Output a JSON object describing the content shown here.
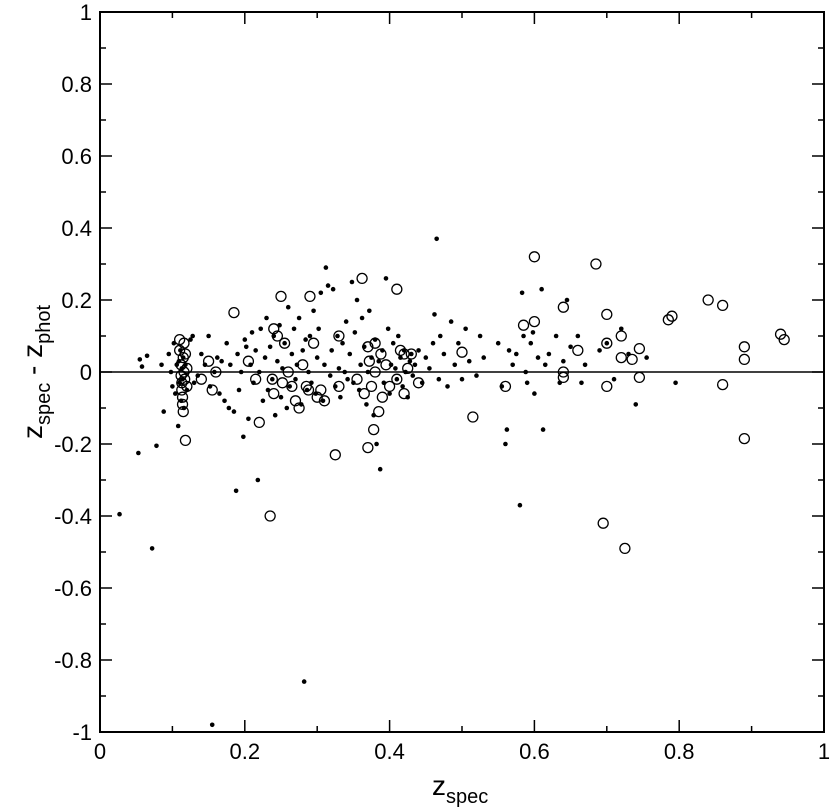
{
  "chart_data": {
    "type": "scatter",
    "title": "",
    "xlabel": {
      "main": "z",
      "sub": "spec"
    },
    "ylabel": {
      "main1": "z",
      "sub1": "spec",
      "sep": " - ",
      "main2": "z",
      "sub2": "phot"
    },
    "xlim": [
      0,
      1
    ],
    "ylim": [
      -1,
      1
    ],
    "x_ticks": [
      0,
      0.2,
      0.4,
      0.6,
      0.8,
      1
    ],
    "x_tick_labels": [
      "0",
      "0.2",
      "0.4",
      "0.6",
      "0.8",
      "1"
    ],
    "y_ticks": [
      -1,
      -0.8,
      -0.6,
      -0.4,
      -0.2,
      0,
      0.2,
      0.4,
      0.6,
      0.8,
      1
    ],
    "y_tick_labels": [
      "-1",
      "-0.8",
      "-0.6",
      "-0.4",
      "-0.2",
      "0",
      "0.2",
      "0.4",
      "0.6",
      "0.8",
      "1"
    ],
    "reference_line_y": 0,
    "grid": false,
    "legend": "none",
    "colors": {
      "points": "#000000",
      "axes": "#000000",
      "background": "#ffffff"
    },
    "series": [
      {
        "marker": "filled-dot",
        "points": [
          [
            0.027,
            -0.395
          ],
          [
            0.053,
            -0.225
          ],
          [
            0.055,
            0.035
          ],
          [
            0.058,
            0.015
          ],
          [
            0.065,
            0.045
          ],
          [
            0.072,
            -0.49
          ],
          [
            0.078,
            -0.205
          ],
          [
            0.085,
            0.02
          ],
          [
            0.088,
            -0.11
          ],
          [
            0.095,
            0.05
          ],
          [
            0.098,
            0.0
          ],
          [
            0.1,
            -0.04
          ],
          [
            0.102,
            0.08
          ],
          [
            0.104,
            -0.06
          ],
          [
            0.106,
            0.02
          ],
          [
            0.108,
            -0.15
          ],
          [
            0.109,
            0.03
          ],
          [
            0.11,
            -0.03
          ],
          [
            0.111,
            0.06
          ],
          [
            0.112,
            -0.08
          ],
          [
            0.113,
            0.01
          ],
          [
            0.114,
            -0.02
          ],
          [
            0.115,
            0.04
          ],
          [
            0.116,
            -0.1
          ],
          [
            0.118,
            0.02
          ],
          [
            0.12,
            -0.05
          ],
          [
            0.125,
            0.09
          ],
          [
            0.128,
            0.1
          ],
          [
            0.13,
            -0.03
          ],
          [
            0.135,
            -0.01
          ],
          [
            0.14,
            0.05
          ],
          [
            0.145,
            0.02
          ],
          [
            0.15,
            0.1
          ],
          [
            0.152,
            -0.04
          ],
          [
            0.155,
            -0.98
          ],
          [
            0.158,
            0.0
          ],
          [
            0.162,
            0.04
          ],
          [
            0.165,
            -0.06
          ],
          [
            0.168,
            0.03
          ],
          [
            0.172,
            -0.08
          ],
          [
            0.175,
            0.08
          ],
          [
            0.178,
            -0.1
          ],
          [
            0.18,
            0.02
          ],
          [
            0.185,
            -0.11
          ],
          [
            0.188,
            -0.33
          ],
          [
            0.19,
            0.05
          ],
          [
            0.192,
            -0.05
          ],
          [
            0.195,
            0.0
          ],
          [
            0.198,
            -0.18
          ],
          [
            0.2,
            0.09
          ],
          [
            0.202,
            0.07
          ],
          [
            0.205,
            -0.13
          ],
          [
            0.208,
            0.02
          ],
          [
            0.21,
            0.11
          ],
          [
            0.212,
            -0.03
          ],
          [
            0.215,
            0.06
          ],
          [
            0.218,
            -0.3
          ],
          [
            0.22,
            0.0
          ],
          [
            0.222,
            0.12
          ],
          [
            0.225,
            -0.08
          ],
          [
            0.228,
            0.04
          ],
          [
            0.23,
            0.15
          ],
          [
            0.232,
            -0.05
          ],
          [
            0.235,
            0.07
          ],
          [
            0.238,
            -0.02
          ],
          [
            0.24,
            0.1
          ],
          [
            0.242,
            -0.12
          ],
          [
            0.245,
            0.03
          ],
          [
            0.248,
            0.13
          ],
          [
            0.25,
            -0.07
          ],
          [
            0.252,
            0.01
          ],
          [
            0.255,
            0.08
          ],
          [
            0.258,
            -0.1
          ],
          [
            0.26,
            0.18
          ],
          [
            0.262,
            -0.04
          ],
          [
            0.265,
            0.05
          ],
          [
            0.268,
            0.12
          ],
          [
            0.27,
            -0.02
          ],
          [
            0.272,
            0.02
          ],
          [
            0.275,
            0.15
          ],
          [
            0.278,
            -0.09
          ],
          [
            0.28,
            0.06
          ],
          [
            0.282,
            -0.86
          ],
          [
            0.284,
            0.09
          ],
          [
            0.286,
            -0.05
          ],
          [
            0.288,
            0.0
          ],
          [
            0.29,
            0.1
          ],
          [
            0.292,
            -0.03
          ],
          [
            0.295,
            0.17
          ],
          [
            0.298,
            -0.06
          ],
          [
            0.3,
            0.04
          ],
          [
            0.302,
            0.12
          ],
          [
            0.305,
            0.22
          ],
          [
            0.308,
            -0.08
          ],
          [
            0.31,
            0.02
          ],
          [
            0.312,
            0.29
          ],
          [
            0.315,
            0.24
          ],
          [
            0.318,
            -0.01
          ],
          [
            0.32,
            0.06
          ],
          [
            0.322,
            0.23
          ],
          [
            0.325,
            -0.04
          ],
          [
            0.328,
            0.1
          ],
          [
            0.33,
            0.01
          ],
          [
            0.332,
            -0.07
          ],
          [
            0.335,
            0.08
          ],
          [
            0.338,
            0.0
          ],
          [
            0.34,
            0.14
          ],
          [
            0.342,
            -0.02
          ],
          [
            0.345,
            0.05
          ],
          [
            0.348,
            0.25
          ],
          [
            0.35,
            -0.03
          ],
          [
            0.352,
            0.11
          ],
          [
            0.355,
            0.2
          ],
          [
            0.358,
            -0.05
          ],
          [
            0.36,
            0.02
          ],
          [
            0.362,
            0.15
          ],
          [
            0.365,
            0.07
          ],
          [
            0.368,
            -0.09
          ],
          [
            0.37,
            0.0
          ],
          [
            0.372,
            0.17
          ],
          [
            0.375,
            0.04
          ],
          [
            0.378,
            -0.12
          ],
          [
            0.38,
            0.09
          ],
          [
            0.382,
            -0.2
          ],
          [
            0.385,
            0.03
          ],
          [
            0.387,
            -0.27
          ],
          [
            0.39,
            0.06
          ],
          [
            0.392,
            -0.03
          ],
          [
            0.395,
            0.26
          ],
          [
            0.398,
            0.12
          ],
          [
            0.4,
            -0.06
          ],
          [
            0.402,
            0.02
          ],
          [
            0.405,
            0.08
          ],
          [
            0.408,
            0.01
          ],
          [
            0.41,
            -0.02
          ],
          [
            0.412,
            0.1
          ],
          [
            0.415,
            0.04
          ],
          [
            0.418,
            -0.04
          ],
          [
            0.42,
            0.06
          ],
          [
            0.422,
            0.0
          ],
          [
            0.425,
            -0.07
          ],
          [
            0.428,
            0.03
          ],
          [
            0.43,
            0.05
          ],
          [
            0.432,
            -0.01
          ],
          [
            0.435,
            0.02
          ],
          [
            0.44,
            0.06
          ],
          [
            0.445,
            -0.03
          ],
          [
            0.45,
            0.04
          ],
          [
            0.455,
            0.01
          ],
          [
            0.46,
            0.08
          ],
          [
            0.462,
            0.16
          ],
          [
            0.465,
            0.37
          ],
          [
            0.468,
            -0.02
          ],
          [
            0.47,
            0.1
          ],
          [
            0.475,
            0.05
          ],
          [
            0.48,
            -0.04
          ],
          [
            0.485,
            0.14
          ],
          [
            0.49,
            0.02
          ],
          [
            0.495,
            0.08
          ],
          [
            0.5,
            -0.02
          ],
          [
            0.505,
            0.12
          ],
          [
            0.51,
            0.03
          ],
          [
            0.52,
            -0.01
          ],
          [
            0.525,
            0.1
          ],
          [
            0.53,
            0.04
          ],
          [
            0.55,
            0.08
          ],
          [
            0.555,
            -0.04
          ],
          [
            0.56,
            -0.2
          ],
          [
            0.562,
            -0.16
          ],
          [
            0.565,
            0.06
          ],
          [
            0.57,
            0.02
          ],
          [
            0.575,
            0.05
          ],
          [
            0.58,
            -0.37
          ],
          [
            0.583,
            0.22
          ],
          [
            0.585,
            0.1
          ],
          [
            0.588,
            0.0
          ],
          [
            0.59,
            -0.03
          ],
          [
            0.595,
            0.08
          ],
          [
            0.598,
            0.11
          ],
          [
            0.6,
            -0.06
          ],
          [
            0.605,
            0.04
          ],
          [
            0.61,
            0.23
          ],
          [
            0.612,
            -0.16
          ],
          [
            0.615,
            0.02
          ],
          [
            0.62,
            0.05
          ],
          [
            0.63,
            0.1
          ],
          [
            0.635,
            -0.03
          ],
          [
            0.64,
            0.03
          ],
          [
            0.645,
            0.2
          ],
          [
            0.65,
            0.07
          ],
          [
            0.66,
            0.1
          ],
          [
            0.665,
            -0.03
          ],
          [
            0.67,
            0.02
          ],
          [
            0.69,
            0.06
          ],
          [
            0.7,
            0.08
          ],
          [
            0.71,
            -0.02
          ],
          [
            0.72,
            0.12
          ],
          [
            0.73,
            0.05
          ],
          [
            0.74,
            -0.09
          ],
          [
            0.755,
            0.04
          ],
          [
            0.795,
            -0.03
          ]
        ]
      },
      {
        "marker": "open-circle",
        "points": [
          [
            0.11,
            0.09
          ],
          [
            0.11,
            0.06
          ],
          [
            0.112,
            0.02
          ],
          [
            0.112,
            -0.01
          ],
          [
            0.113,
            -0.03
          ],
          [
            0.113,
            -0.05
          ],
          [
            0.114,
            -0.07
          ],
          [
            0.114,
            -0.09
          ],
          [
            0.115,
            0.04
          ],
          [
            0.115,
            -0.11
          ],
          [
            0.116,
            0.0
          ],
          [
            0.116,
            0.08
          ],
          [
            0.117,
            -0.02
          ],
          [
            0.118,
            0.05
          ],
          [
            0.118,
            -0.19
          ],
          [
            0.12,
            0.01
          ],
          [
            0.12,
            -0.04
          ],
          [
            0.14,
            -0.02
          ],
          [
            0.15,
            0.03
          ],
          [
            0.155,
            -0.05
          ],
          [
            0.16,
            0.0
          ],
          [
            0.185,
            0.165
          ],
          [
            0.205,
            0.03
          ],
          [
            0.215,
            -0.02
          ],
          [
            0.22,
            -0.14
          ],
          [
            0.24,
            0.12
          ],
          [
            0.235,
            -0.4
          ],
          [
            0.238,
            -0.02
          ],
          [
            0.24,
            -0.06
          ],
          [
            0.245,
            0.1
          ],
          [
            0.25,
            0.21
          ],
          [
            0.252,
            -0.03
          ],
          [
            0.255,
            0.08
          ],
          [
            0.26,
            0.0
          ],
          [
            0.265,
            -0.04
          ],
          [
            0.27,
            -0.08
          ],
          [
            0.275,
            -0.1
          ],
          [
            0.28,
            0.02
          ],
          [
            0.285,
            -0.04
          ],
          [
            0.288,
            -0.05
          ],
          [
            0.29,
            0.21
          ],
          [
            0.295,
            0.08
          ],
          [
            0.3,
            -0.07
          ],
          [
            0.305,
            -0.05
          ],
          [
            0.31,
            -0.08
          ],
          [
            0.325,
            -0.23
          ],
          [
            0.33,
            0.1
          ],
          [
            0.33,
            -0.04
          ],
          [
            0.355,
            -0.02
          ],
          [
            0.362,
            0.26
          ],
          [
            0.365,
            -0.06
          ],
          [
            0.37,
            0.07
          ],
          [
            0.37,
            -0.21
          ],
          [
            0.372,
            0.03
          ],
          [
            0.375,
            -0.04
          ],
          [
            0.378,
            -0.16
          ],
          [
            0.38,
            0.08
          ],
          [
            0.38,
            0.0
          ],
          [
            0.385,
            -0.11
          ],
          [
            0.388,
            0.05
          ],
          [
            0.39,
            -0.07
          ],
          [
            0.395,
            0.02
          ],
          [
            0.4,
            -0.04
          ],
          [
            0.41,
            0.23
          ],
          [
            0.41,
            -0.02
          ],
          [
            0.415,
            0.06
          ],
          [
            0.42,
            0.05
          ],
          [
            0.42,
            -0.06
          ],
          [
            0.425,
            0.01
          ],
          [
            0.43,
            0.05
          ],
          [
            0.44,
            -0.03
          ],
          [
            0.5,
            0.055
          ],
          [
            0.515,
            -0.125
          ],
          [
            0.56,
            -0.04
          ],
          [
            0.585,
            0.13
          ],
          [
            0.6,
            0.32
          ],
          [
            0.6,
            0.14
          ],
          [
            0.64,
            0.18
          ],
          [
            0.64,
            0.0
          ],
          [
            0.64,
            -0.015
          ],
          [
            0.66,
            0.06
          ],
          [
            0.685,
            0.3
          ],
          [
            0.695,
            -0.42
          ],
          [
            0.7,
            0.16
          ],
          [
            0.7,
            0.08
          ],
          [
            0.7,
            -0.04
          ],
          [
            0.72,
            0.1
          ],
          [
            0.72,
            0.04
          ],
          [
            0.725,
            -0.49
          ],
          [
            0.735,
            0.035
          ],
          [
            0.745,
            0.065
          ],
          [
            0.745,
            -0.015
          ],
          [
            0.785,
            0.145
          ],
          [
            0.79,
            0.155
          ],
          [
            0.84,
            0.2
          ],
          [
            0.86,
            0.185
          ],
          [
            0.86,
            -0.035
          ],
          [
            0.89,
            0.07
          ],
          [
            0.89,
            0.035
          ],
          [
            0.89,
            -0.185
          ],
          [
            0.94,
            0.105
          ],
          [
            0.945,
            0.09
          ]
        ]
      }
    ]
  }
}
